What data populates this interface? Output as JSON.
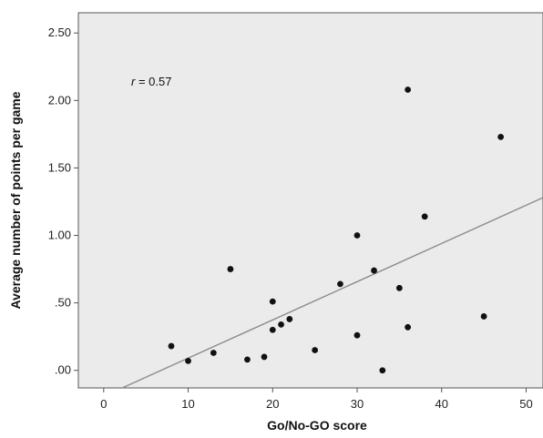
{
  "chart_data": {
    "type": "scatter",
    "title": "",
    "xlabel": "Go/No-GO score",
    "ylabel": "Average number of points per game",
    "xlim": [
      -3,
      52
    ],
    "ylim": [
      -0.13,
      2.65
    ],
    "x_ticks": [
      0,
      10,
      20,
      30,
      40,
      50
    ],
    "x_tick_labels": [
      "0",
      "10",
      "20",
      "30",
      "40",
      "50"
    ],
    "y_ticks": [
      0,
      0.5,
      1.0,
      1.5,
      2.0,
      2.5
    ],
    "y_tick_labels": [
      ".00",
      ".50",
      "1.00",
      "1.50",
      "2.00",
      "2.50"
    ],
    "annotation": {
      "italic": "r",
      "text": " = 0.57"
    },
    "plot_background": "#ebebeb",
    "point_color": "#111111",
    "fit_line_color": "#8c8c8c",
    "grid": false,
    "points": [
      {
        "x": 8,
        "y": 0.18
      },
      {
        "x": 10,
        "y": 0.07
      },
      {
        "x": 13,
        "y": 0.13
      },
      {
        "x": 15,
        "y": 0.75
      },
      {
        "x": 17,
        "y": 0.08
      },
      {
        "x": 19,
        "y": 0.1
      },
      {
        "x": 20,
        "y": 0.51
      },
      {
        "x": 20,
        "y": 0.3
      },
      {
        "x": 21,
        "y": 0.34
      },
      {
        "x": 22,
        "y": 0.38
      },
      {
        "x": 25,
        "y": 0.15
      },
      {
        "x": 28,
        "y": 0.64
      },
      {
        "x": 30,
        "y": 1.0
      },
      {
        "x": 30,
        "y": 0.26
      },
      {
        "x": 32,
        "y": 0.74
      },
      {
        "x": 33,
        "y": 0.0
      },
      {
        "x": 35,
        "y": 0.61
      },
      {
        "x": 36,
        "y": 2.08
      },
      {
        "x": 36,
        "y": 0.32
      },
      {
        "x": 38,
        "y": 1.14
      },
      {
        "x": 45,
        "y": 0.4
      },
      {
        "x": 47,
        "y": 1.73
      }
    ],
    "fit_line": {
      "x": [
        2.2,
        52
      ],
      "y": [
        -0.13,
        1.28
      ]
    }
  }
}
